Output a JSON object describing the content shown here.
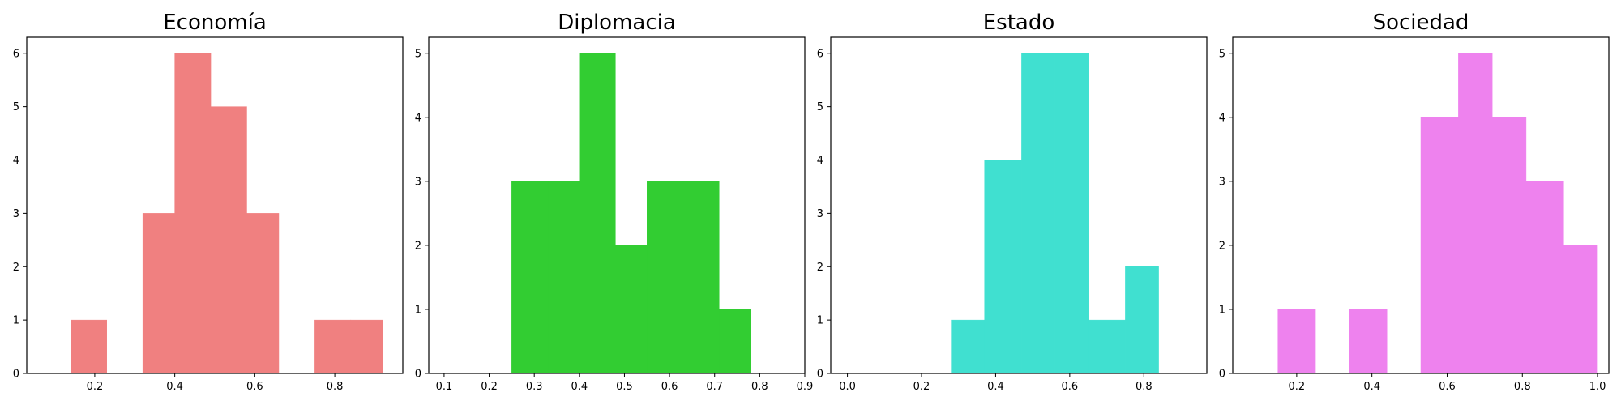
{
  "chart_data": [
    {
      "type": "bar",
      "title": "Economía",
      "color": "#f08080",
      "xlim": [
        0.03,
        0.97
      ],
      "ylim": [
        0,
        6.3
      ],
      "xticks": [
        "0.2",
        "0.4",
        "0.6",
        "0.8"
      ],
      "xtick_values": [
        0.2,
        0.4,
        0.6,
        0.8
      ],
      "yticks": [
        "0",
        "1",
        "2",
        "3",
        "4",
        "5",
        "6"
      ],
      "ytick_values": [
        0,
        1,
        2,
        3,
        4,
        5,
        6
      ],
      "bins": [
        {
          "start": 0.14,
          "end": 0.23,
          "count": 1
        },
        {
          "start": 0.23,
          "end": 0.32,
          "count": 0
        },
        {
          "start": 0.32,
          "end": 0.4,
          "count": 3
        },
        {
          "start": 0.4,
          "end": 0.49,
          "count": 6
        },
        {
          "start": 0.49,
          "end": 0.58,
          "count": 5
        },
        {
          "start": 0.58,
          "end": 0.66,
          "count": 3
        },
        {
          "start": 0.66,
          "end": 0.75,
          "count": 0
        },
        {
          "start": 0.75,
          "end": 0.84,
          "count": 1
        },
        {
          "start": 0.84,
          "end": 0.92,
          "count": 1
        }
      ]
    },
    {
      "type": "bar",
      "title": "Diplomacia",
      "color": "#32cd32",
      "xlim": [
        0.066,
        0.9
      ],
      "ylim": [
        0,
        5.25
      ],
      "xticks": [
        "0.1",
        "0.2",
        "0.3",
        "0.4",
        "0.5",
        "0.6",
        "0.7",
        "0.8",
        "0.9"
      ],
      "xtick_values": [
        0.1,
        0.2,
        0.3,
        0.4,
        0.5,
        0.6,
        0.7,
        0.8,
        0.9
      ],
      "yticks": [
        "0",
        "1",
        "2",
        "3",
        "4",
        "5"
      ],
      "ytick_values": [
        0,
        1,
        2,
        3,
        4,
        5
      ],
      "bins": [
        {
          "start": 0.25,
          "end": 0.33,
          "count": 3
        },
        {
          "start": 0.33,
          "end": 0.4,
          "count": 3
        },
        {
          "start": 0.4,
          "end": 0.48,
          "count": 5
        },
        {
          "start": 0.48,
          "end": 0.55,
          "count": 2
        },
        {
          "start": 0.55,
          "end": 0.63,
          "count": 3
        },
        {
          "start": 0.63,
          "end": 0.71,
          "count": 3
        },
        {
          "start": 0.71,
          "end": 0.78,
          "count": 1
        }
      ]
    },
    {
      "type": "bar",
      "title": "Estado",
      "color": "#40e0d0",
      "xlim": [
        -0.045,
        0.97
      ],
      "ylim": [
        0,
        6.3
      ],
      "xticks": [
        "0.0",
        "0.2",
        "0.4",
        "0.6",
        "0.8"
      ],
      "xtick_values": [
        0.0,
        0.2,
        0.4,
        0.6,
        0.8
      ],
      "yticks": [
        "0",
        "1",
        "2",
        "3",
        "4",
        "5",
        "6"
      ],
      "ytick_values": [
        0,
        1,
        2,
        3,
        4,
        5,
        6
      ],
      "bins": [
        {
          "start": 0.28,
          "end": 0.37,
          "count": 1
        },
        {
          "start": 0.37,
          "end": 0.47,
          "count": 4
        },
        {
          "start": 0.47,
          "end": 0.56,
          "count": 6
        },
        {
          "start": 0.56,
          "end": 0.65,
          "count": 6
        },
        {
          "start": 0.65,
          "end": 0.75,
          "count": 1
        },
        {
          "start": 0.75,
          "end": 0.84,
          "count": 2
        }
      ]
    },
    {
      "type": "bar",
      "title": "Sociedad",
      "color": "#ee82ee",
      "xlim": [
        0.03,
        1.03
      ],
      "ylim": [
        0,
        5.25
      ],
      "xticks": [
        "0.2",
        "0.4",
        "0.6",
        "0.8",
        "1.0"
      ],
      "xtick_values": [
        0.2,
        0.4,
        0.6,
        0.8,
        1.0
      ],
      "yticks": [
        "0",
        "1",
        "2",
        "3",
        "4",
        "5"
      ],
      "ytick_values": [
        0,
        1,
        2,
        3,
        4,
        5
      ],
      "bins": [
        {
          "start": 0.15,
          "end": 0.25,
          "count": 1
        },
        {
          "start": 0.25,
          "end": 0.34,
          "count": 0
        },
        {
          "start": 0.34,
          "end": 0.44,
          "count": 1
        },
        {
          "start": 0.44,
          "end": 0.53,
          "count": 0
        },
        {
          "start": 0.53,
          "end": 0.63,
          "count": 4
        },
        {
          "start": 0.63,
          "end": 0.72,
          "count": 5
        },
        {
          "start": 0.72,
          "end": 0.81,
          "count": 4
        },
        {
          "start": 0.81,
          "end": 0.91,
          "count": 3
        },
        {
          "start": 0.91,
          "end": 1.0,
          "count": 2
        }
      ]
    }
  ]
}
